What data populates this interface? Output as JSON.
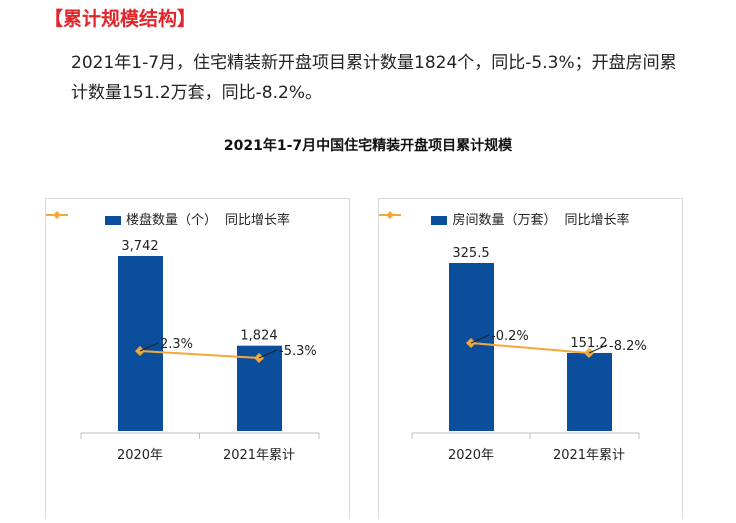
{
  "heading": "【累计规模结构】",
  "paragraph": "2021年1-7月，住宅精装新开盘项目累计数量1824个，同比-5.3%；开盘房间累计数量151.2万套，同比-8.2%。",
  "colors": {
    "bar": "#0b4f9c",
    "line": "#f2a93b",
    "heading": "#e0262b"
  },
  "chart_title": "2021年1-7月中国住宅精装开盘项目累计规模",
  "chart_data": [
    {
      "type": "bar",
      "title": "2021年1-7月中国住宅精装开盘项目累计规模",
      "categories": [
        "2020年",
        "2021年累计"
      ],
      "series": [
        {
          "name": "楼盘数量（个）",
          "type": "bar",
          "values": [
            3742,
            1824
          ],
          "labels": [
            "3,742",
            "1,824"
          ]
        },
        {
          "name": "同比增长率",
          "type": "line",
          "values": [
            2.3,
            -5.3
          ],
          "labels": [
            "2.3%",
            "-5.3%"
          ]
        }
      ]
    },
    {
      "type": "bar",
      "title": "2021年1-7月中国住宅精装开盘项目累计规模",
      "categories": [
        "2020年",
        "2021年累计"
      ],
      "series": [
        {
          "name": "房间数量（万套）",
          "type": "bar",
          "values": [
            325.5,
            151.2
          ],
          "labels": [
            "325.5",
            "151.2"
          ]
        },
        {
          "name": "同比增长率",
          "type": "line",
          "values": [
            -0.2,
            -8.2
          ],
          "labels": [
            "-0.2%",
            "-8.2%"
          ]
        }
      ]
    }
  ]
}
